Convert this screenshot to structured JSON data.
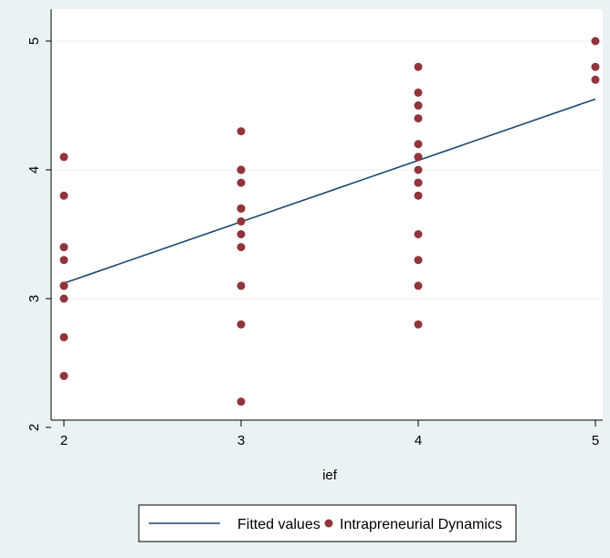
{
  "colors": {
    "background": "#eaf2f3",
    "plot_background": "#ffffff",
    "gridline": "#eaf2f3",
    "fit_line": "#1a476f",
    "points": "#90353b"
  },
  "chart_data": {
    "type": "scatter",
    "xlabel": "ief",
    "ylabel": "",
    "xlim": [
      2,
      5
    ],
    "ylim": [
      2,
      5
    ],
    "xticks": [
      2,
      3,
      4,
      5
    ],
    "yticks": [
      2,
      3,
      4,
      5
    ],
    "grid": true,
    "legend_position": "bottom",
    "series": [
      {
        "name": "Fitted values",
        "kind": "line",
        "x": [
          2,
          5
        ],
        "y": [
          3.12,
          4.55
        ]
      },
      {
        "name": "Intrapreneurial Dynamics",
        "kind": "scatter",
        "x": [
          2,
          2,
          2,
          2,
          2,
          2,
          2,
          2,
          2,
          3,
          3,
          3,
          3,
          3,
          3,
          3,
          3,
          3,
          3,
          3,
          3,
          4,
          4,
          4,
          4,
          4,
          4,
          4,
          4,
          4,
          4,
          4,
          4,
          4,
          4,
          4,
          4,
          5,
          5,
          5
        ],
        "y": [
          4.1,
          3.8,
          3.4,
          3.3,
          3.1,
          3.0,
          2.7,
          2.4,
          3.1,
          4.3,
          4.0,
          3.9,
          3.7,
          3.6,
          3.5,
          3.4,
          3.1,
          2.8,
          2.2,
          4.0,
          3.7,
          4.8,
          4.6,
          4.5,
          4.4,
          4.2,
          4.1,
          4.0,
          3.9,
          3.8,
          3.5,
          3.3,
          3.1,
          2.8,
          4.5,
          4.1,
          3.9,
          5.0,
          4.8,
          4.7
        ]
      }
    ]
  }
}
